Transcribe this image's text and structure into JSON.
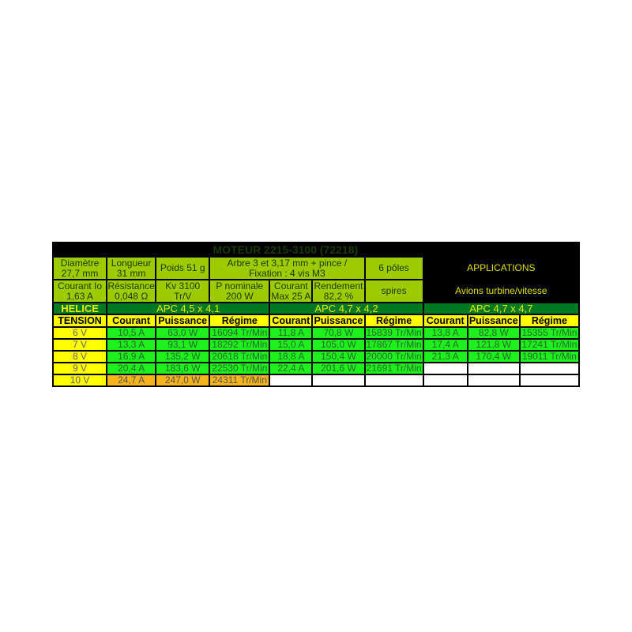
{
  "title": "MOTEUR 2215-3100 (72218)",
  "specs_row1": [
    "Diamètre 27,7 mm",
    "Longueur 31 mm",
    "Poids   51 g",
    "Arbre 3 et 3,17 mm + pince / Fixation : 4 vis M3",
    "6 pôles"
  ],
  "specs_row2": [
    "Courant Io 1,63 A",
    "Résistance 0,048 Ω",
    "Kv 3100 Tr/V",
    "P nominale 200 W",
    "Courant Max 25 A",
    "Rendement 82,2  %",
    "spires"
  ],
  "applications_label": "APPLICATIONS",
  "applications_value": "Avions turbine/vitesse",
  "helice_label": "HELICE",
  "tension_label": "TENSION",
  "column_headers": [
    "Courant",
    "Puissance",
    "Régime"
  ],
  "propellers": [
    "APC 4,5 x 4,1",
    "APC 4,7 x 4,2",
    "APC 4,7 x 4,7"
  ],
  "colors": {
    "olive": "#9ccc00",
    "dark_green": "#007a22",
    "green": "#1ef01e",
    "yellow": "#ffff00",
    "orange": "#f5b31c"
  },
  "rows": [
    {
      "tension": "6 V",
      "p1": [
        "10,5 A",
        "63,0 W",
        "16094 Tr/Min"
      ],
      "p2": [
        "11,8 A",
        "70,8 W",
        "15839 Tr/Min"
      ],
      "p3": [
        "13,8 A",
        "82,8 W",
        "15355 Tr/Min"
      ]
    },
    {
      "tension": "7 V",
      "p1": [
        "13,3 A",
        "93,1 W",
        "18292 Tr/Min"
      ],
      "p2": [
        "15,0 A",
        "105,0 W",
        "17867 Tr/Min"
      ],
      "p3": [
        "17,4 A",
        "121,8 W",
        "17241 Tr/Min"
      ]
    },
    {
      "tension": "8 V",
      "p1": [
        "16,9 A",
        "135,2 W",
        "20618 Tr/Min"
      ],
      "p2": [
        "18,8 A",
        "150,4 W",
        "20000 Tr/Min"
      ],
      "p3": [
        "21,3 A",
        "170,4 W",
        "19011 Tr/Min"
      ]
    },
    {
      "tension": "9 V",
      "p1": [
        "20,4 A",
        "183,6 W",
        "22530 Tr/Min"
      ],
      "p2": [
        "22,4 A",
        "201,6 W",
        "21691 Tr/Min"
      ],
      "p3": [
        "",
        "",
        ""
      ]
    },
    {
      "tension": "10 V",
      "p1": [
        "24,7 A",
        "247,0 W",
        "24311 Tr/Min"
      ],
      "p2": [
        "",
        "",
        ""
      ],
      "p3": [
        "",
        "",
        ""
      ],
      "warning": true
    }
  ]
}
